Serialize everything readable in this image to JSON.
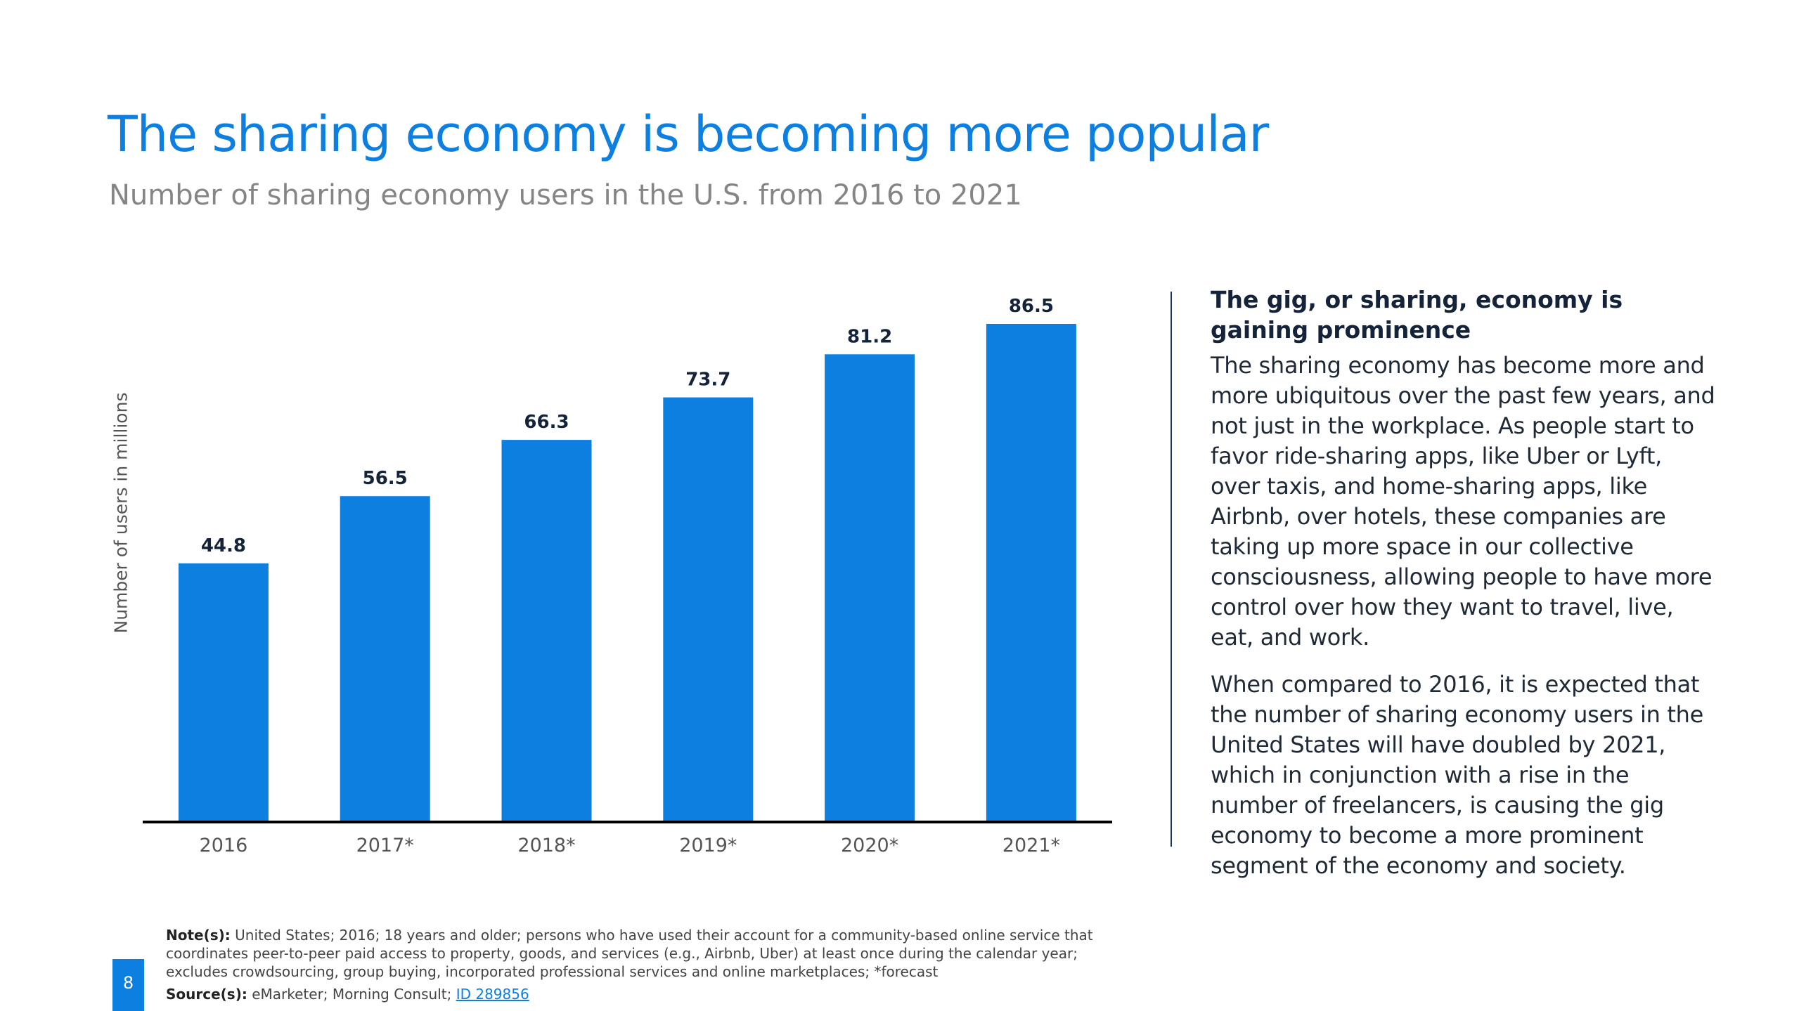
{
  "chart_data": {
    "type": "bar",
    "title": "The sharing economy is becoming more popular",
    "subtitle": "Number of sharing economy users in the U.S. from 2016 to 2021",
    "categories": [
      "2016",
      "2017*",
      "2018*",
      "2019*",
      "2020*",
      "2021*"
    ],
    "values": [
      44.8,
      56.5,
      66.3,
      73.7,
      81.2,
      86.5
    ],
    "value_labels": [
      "44.8",
      "56.5",
      "66.3",
      "73.7",
      "81.2",
      "86.5"
    ],
    "xlabel": "",
    "ylabel": "Number of users in millions",
    "ylim": [
      0,
      86.5
    ],
    "grid": false,
    "legend": "none",
    "bar_color": "#0d7fe0",
    "label_color": "#14233a"
  },
  "panel": {
    "heading": "The gig, or sharing, economy is gaining prominence",
    "paragraph_1": "The sharing economy has become more and more ubiquitous over the past few years, and not just in the workplace. As people start to favor ride-sharing apps, like Uber or Lyft, over taxis, and home-sharing apps, like Airbnb, over hotels, these companies are taking up more space in our collective consciousness, allowing people to have more control over how they want to travel, live, eat, and work.",
    "paragraph_2": "When compared to 2016, it is expected that the number of sharing economy users in the United States will have doubled by 2021, which in conjunction with a rise in the number of freelancers, is causing the gig economy to become a more prominent segment of the economy and society."
  },
  "footer": {
    "page_number": "8",
    "notes_label": "Note(s):",
    "notes_text": "United States; 2016; 18 years and older; persons who have used their account for a community-based online service that coordinates peer-to-peer paid access to property, goods, and services (e.g., Airbnb, Uber) at least once during the calendar year; excludes crowdsourcing, group buying, incorporated professional services and online marketplaces; *forecast",
    "source_label": "Source(s):",
    "source_text": "eMarketer; Morning Consult;",
    "source_id": "ID 289856"
  },
  "colors": {
    "accent": "#0d7fe0",
    "subtitle": "#858585",
    "heading": "#14233a"
  }
}
